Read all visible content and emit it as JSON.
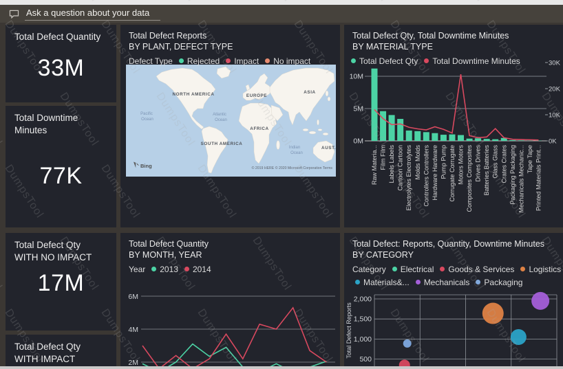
{
  "qa_bar": {
    "text": "Ask a question about your data"
  },
  "watermark": {
    "text": "DumpsTool"
  },
  "theme": {
    "canvas_bg": "#3b3733",
    "tile_bg": "#22242c",
    "qa_bar_bg": "#46423c",
    "top_strip": "#e8e8e8",
    "bottom_strip": "#c9c9c9",
    "text_primary": "#ececec",
    "teal": "#4cd3a5",
    "red": "#d9495f"
  },
  "kpis": [
    {
      "title": "Total Defect Quantity",
      "value": "33M"
    },
    {
      "title": "Total Downtime Minutes",
      "value": "77K"
    },
    {
      "title": "Total Defect Qty",
      "title2": "WITH NO IMPACT",
      "value": "17M"
    },
    {
      "title": "Total Defect Qty",
      "title2": "WITH IMPACT",
      "value": ""
    }
  ],
  "map": {
    "title": "Total Defect Reports",
    "subtitle": "BY PLANT, DEFECT TYPE",
    "legend_title": "Defect Type",
    "legend": [
      {
        "label": "Rejected",
        "color": "#4cd3a5"
      },
      {
        "label": "Impact",
        "color": "#d9495f"
      },
      {
        "label": "No impact",
        "color": "#e78b70"
      }
    ],
    "regions": [
      "NORTH AMERICA",
      "EUROPE",
      "ASIA",
      "AFRICA",
      "SOUTH AMERICA",
      "AUST..."
    ],
    "oceans": {
      "pacific": [
        "Pacific",
        "Ocean"
      ],
      "atlantic": [
        "Atlantic",
        "Ocean"
      ],
      "indian": [
        "Indian",
        "Ocean"
      ]
    },
    "bing_label": "Bing",
    "attribution": "© 2019 HERE © 2020 Microsoft Corporation Terms"
  },
  "chart_data": [
    {
      "type": "combo-bar-line",
      "title": "Total Defect Qty, Total Downtime Minutes",
      "subtitle": "BY MATERIAL TYPE",
      "categories": [
        "Raw Materia...",
        "Film Film",
        "Labels Labels",
        "Cartoon Cartoon",
        "Electrolytes Electrolytes",
        "Molds Molds",
        "Controllers Controllers",
        "Hardware Hardware",
        "Pump Pump",
        "Corrugate Corrugate",
        "Motors Motors",
        "Composites Composites",
        "Drives Drives",
        "Batteries Batteries",
        "Glass Glass",
        "Crates Crates",
        "Packaging Packaging",
        "Mechanicals Mechanic...",
        "Tape Tape",
        "Printed Materials Print..."
      ],
      "series": [
        {
          "name": "Total Defect Qty",
          "type": "bar",
          "axis": "left",
          "unit": "M",
          "color": "#4cd3a5",
          "values": [
            11.2,
            4.6,
            4.0,
            3.4,
            1.6,
            1.5,
            1.35,
            1.2,
            0.95,
            1.0,
            0.9,
            0.35,
            0.4,
            0.3,
            0.25,
            0.45,
            0.12,
            0.08,
            0.05,
            0.04
          ]
        },
        {
          "name": "Total Downtime Minutes",
          "type": "line",
          "axis": "right",
          "unit": "K",
          "color": "#d9495f",
          "values": [
            12,
            8.5,
            6.2,
            6.5,
            5.2,
            4.6,
            4.2,
            5.4,
            4.4,
            3.0,
            25.5,
            2.0,
            1.2,
            1.5,
            4.7,
            1.2,
            0.6,
            0.5,
            0.4,
            0.3
          ]
        }
      ],
      "left_axis": {
        "ticks": [
          "0M",
          "5M",
          "10M"
        ],
        "step_value": 5000000
      },
      "right_axis": {
        "ticks": [
          "0K",
          "10K",
          "20K",
          "30K"
        ],
        "step_value": 10000
      },
      "grid": true,
      "legend_position": "top"
    },
    {
      "type": "line",
      "title": "Total Defect Quantity",
      "subtitle": "BY MONTH, YEAR",
      "legend_title": "Year",
      "y_ticks": [
        "2M",
        "4M",
        "6M"
      ],
      "x_labels_visible": false,
      "series": [
        {
          "name": "2013",
          "color": "#4cd3a5",
          "unit": "M",
          "values": [
            1.9,
            1.4,
            2.0,
            3.1,
            2.35,
            2.9,
            1.7,
            1.4,
            1.9,
            1.4,
            1.7,
            2.05
          ]
        },
        {
          "name": "2014",
          "color": "#d9495f",
          "unit": "M",
          "values": [
            3.0,
            1.6,
            2.4,
            1.6,
            2.2,
            3.7,
            2.2,
            4.3,
            4.0,
            5.3,
            2.7,
            2.0
          ]
        }
      ],
      "grid": true,
      "legend_position": "top"
    },
    {
      "type": "scatter-bubble",
      "title": "Total Defect: Reports, Quantity, Downtime Minutes",
      "subtitle": "BY CATEGORY",
      "legend_title": "Category",
      "ylabel": "Total Defect Reports",
      "y_ticks": [
        "500",
        "1,000",
        "1,500",
        "2,000"
      ],
      "x_labels_visible": false,
      "legend": [
        {
          "label": "Electrical",
          "color": "#4cd3a5"
        },
        {
          "label": "Goods & Services",
          "color": "#d9495f"
        },
        {
          "label": "Logistics",
          "color": "#de8244"
        },
        {
          "label": "Materials&...",
          "color": "#2ba3c7"
        },
        {
          "label": "Mechanicals",
          "color": "#a45fd8"
        },
        {
          "label": "Packaging",
          "color": "#7ea9e0"
        }
      ],
      "points": [
        {
          "category": "Goods & Services",
          "color": "#d9495f",
          "reports": 350,
          "x_frac": 0.165,
          "size": 8
        },
        {
          "category": "Packaging",
          "color": "#7ea9e0",
          "reports": 890,
          "x_frac": 0.18,
          "size": 6
        },
        {
          "category": "Logistics",
          "color": "#de8244",
          "reports": 1640,
          "x_frac": 0.65,
          "size": 15.5
        },
        {
          "category": "Materials&...",
          "color": "#2ba3c7",
          "reports": 1050,
          "x_frac": 0.79,
          "size": 11.5
        },
        {
          "category": "Mechanicals",
          "color": "#a45fd8",
          "reports": 1950,
          "x_frac": 0.91,
          "size": 13
        }
      ],
      "grid": true,
      "legend_position": "top"
    }
  ]
}
